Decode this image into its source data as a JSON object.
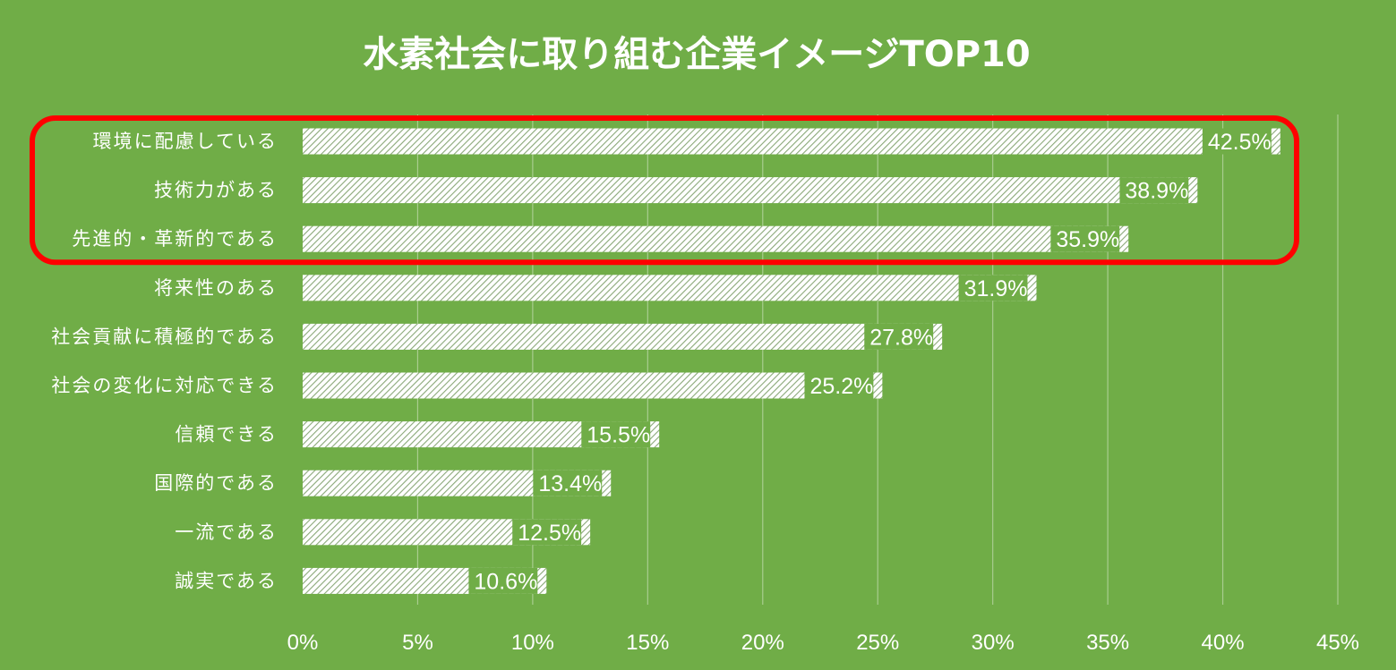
{
  "chart_data": {
    "type": "bar",
    "orientation": "horizontal",
    "title": "水素社会に取り組む企業イメージTOP10",
    "categories": [
      "環境に配慮している",
      "技術力がある",
      "先進的・革新的である",
      "将来性のある",
      "社会貢献に積極的である",
      "社会の変化に対応できる",
      "信頼できる",
      "国際的である",
      "一流である",
      "誠実である"
    ],
    "values": [
      42.5,
      38.9,
      35.9,
      31.9,
      27.8,
      25.2,
      15.5,
      13.4,
      12.5,
      10.6
    ],
    "value_labels": [
      "42.5%",
      "38.9%",
      "35.9%",
      "31.9%",
      "27.8%",
      "25.2%",
      "15.5%",
      "13.4%",
      "12.5%",
      "10.6%"
    ],
    "xlim": [
      0,
      45
    ],
    "x_ticks": [
      0,
      5,
      10,
      15,
      20,
      25,
      30,
      35,
      40,
      45
    ],
    "x_tick_labels": [
      "0%",
      "5%",
      "10%",
      "15%",
      "20%",
      "25%",
      "30%",
      "35%",
      "40%",
      "45%"
    ],
    "xlabel": "",
    "ylabel": "",
    "grid": true,
    "bar_fill": "hatched",
    "highlight": {
      "from_index": 0,
      "to_index": 2,
      "color": "#ff0000"
    }
  },
  "colors": {
    "background": "#70ad47",
    "bar_base": "#ffffff",
    "bar_hatch": "#8aa878",
    "text": "#ffffff",
    "grid": "#a9cd8f",
    "highlight": "#ff0000"
  }
}
